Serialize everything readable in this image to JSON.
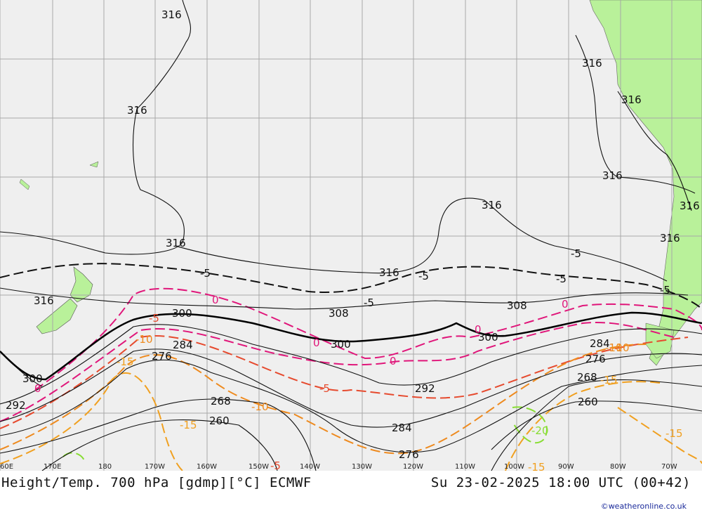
{
  "colors": {
    "ocean": "#efefef",
    "land": "#b9f19a",
    "grid": "#a8a8a8",
    "height_contour": "#111111",
    "temp_0": "#e0167a",
    "temp_minus5": "#e64a2e",
    "temp_minus10": "#ee8a1e",
    "temp_minus15": "#f0a020",
    "temp_minus20": "#88dd33"
  },
  "map": {
    "longitude_ticks": [
      "60E",
      "170E",
      "180",
      "170W",
      "160W",
      "150W",
      "140W",
      "130W",
      "120W",
      "110W",
      "100W",
      "90W",
      "80W",
      "70W"
    ],
    "height_labels": [
      "316",
      "316",
      "316",
      "316",
      "316",
      "316",
      "316",
      "316",
      "316",
      "316",
      "308",
      "300",
      "300",
      "300",
      "300",
      "292",
      "292",
      "284",
      "284",
      "284",
      "276",
      "276",
      "276",
      "268",
      "268",
      "260",
      "260"
    ],
    "temp_labels": [
      "-5",
      "-5",
      "-5",
      "-5",
      "-5",
      "-5",
      "-5",
      "0",
      "0",
      "0",
      "0",
      "0",
      "0",
      "-5",
      "-5",
      "-10",
      "-10",
      "-10",
      "-15",
      "-15",
      "-15",
      "-15",
      "-10",
      "-15",
      "-20"
    ]
  },
  "footer": {
    "title_left": "Height/Temp. 700 hPa [gdmp][°C] ECMWF",
    "title_right": "Su 23-02-2025 18:00 UTC (00+42)",
    "credit": "©weatheronline.co.uk"
  }
}
